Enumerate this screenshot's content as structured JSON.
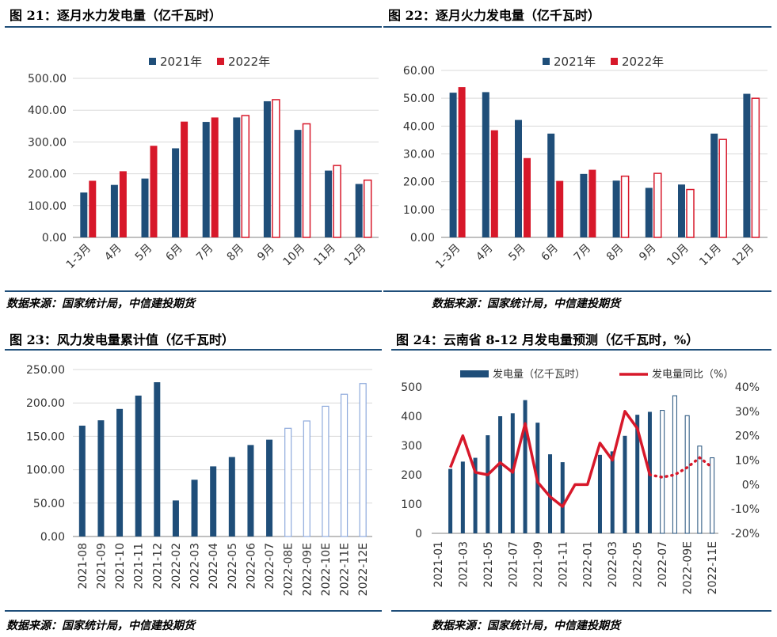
{
  "figures": [
    {
      "title": "图 21：逐月水力发电量（亿千瓦时）",
      "source": "数据来源：国家统计局，中信建投期货"
    },
    {
      "title": "图 22：逐月火力发电量（亿千瓦时）",
      "source": "数据来源：国家统计局，中信建投期货"
    },
    {
      "title": "图 23：风力发电量累计值（亿千瓦时）",
      "source": "数据来源：国家统计局，中信建投期货"
    },
    {
      "title": "图 24：云南省 8-12 月发电量预测（亿千瓦时，%）",
      "source": "数据来源：国家统计局，中信建投期货"
    }
  ],
  "colors": {
    "navy": "#1f4e79",
    "red": "#d7182a",
    "lightblue": "#8faadc",
    "grid": "#d9d9d9",
    "axis": "#808080"
  },
  "chart_data": [
    {
      "type": "bar",
      "categories": [
        "1-3月",
        "4月",
        "5月",
        "6月",
        "7月",
        "8月",
        "9月",
        "10月",
        "11月",
        "12月"
      ],
      "series": [
        {
          "name": "2021年",
          "values": [
            141,
            165,
            185,
            280,
            363,
            377,
            428,
            338,
            210,
            168
          ]
        },
        {
          "name": "2022年",
          "values": [
            178,
            208,
            288,
            364,
            377,
            383,
            433,
            357,
            226,
            180
          ]
        }
      ],
      "note_style": "2022 bars from 8月 onward drawn as outlined (forecast)",
      "yticks": [
        "0.00",
        "100.00",
        "200.00",
        "300.00",
        "400.00",
        "500.00"
      ],
      "ylim": [
        0,
        500
      ],
      "legend": "top"
    },
    {
      "type": "bar",
      "categories": [
        "1-3月",
        "4月",
        "5月",
        "6月",
        "7月",
        "8月",
        "9月",
        "10月",
        "11月",
        "12月"
      ],
      "series": [
        {
          "name": "2021年",
          "values": [
            52,
            52.2,
            42.2,
            37.3,
            22.8,
            20.4,
            17.8,
            19,
            37.3,
            51.6
          ]
        },
        {
          "name": "2022年",
          "values": [
            54,
            38.5,
            28.5,
            20.3,
            24.3,
            22,
            23,
            17.2,
            35.2,
            50
          ]
        }
      ],
      "note_style": "2022 bars from 8月 onward drawn as outlined (forecast)",
      "yticks": [
        "0.00",
        "10.00",
        "20.00",
        "30.00",
        "40.00",
        "50.00",
        "60.00"
      ],
      "ylim": [
        0,
        60
      ],
      "legend": "top"
    },
    {
      "type": "bar",
      "categories": [
        "2021-08",
        "2021-09",
        "2021-10",
        "2021-11",
        "2021-12",
        "2022-02",
        "2022-03",
        "2022-04",
        "2022-05",
        "2022-06",
        "2022-07",
        "2022-08E",
        "2022-09E",
        "2022-10E",
        "2022-11E",
        "2022-12E"
      ],
      "values": [
        166,
        174,
        191,
        211,
        231,
        54,
        85,
        105,
        119,
        137,
        145,
        162,
        173,
        195,
        213,
        229
      ],
      "forecast_from_index": 11,
      "yticks": [
        "0.00",
        "50.00",
        "100.00",
        "150.00",
        "200.00",
        "250.00"
      ],
      "ylim": [
        0,
        250
      ]
    },
    {
      "type": "bar+line",
      "x_tick_labels": [
        "2021-01",
        "2021-03",
        "2021-05",
        "2021-07",
        "2021-09",
        "2021-11",
        "2022-01",
        "2022-03",
        "2022-05",
        "2022-07",
        "2022-09E",
        "2022-11E"
      ],
      "bars": {
        "name": "发电量（亿千瓦时）",
        "values": [
          null,
          220,
          245,
          258,
          335,
          400,
          410,
          455,
          378,
          270,
          243,
          null,
          null,
          268,
          280,
          333,
          405,
          415,
          420,
          470,
          402,
          298,
          258
        ],
        "forecast_from_index": 18
      },
      "line": {
        "name": "发电量同比（%）",
        "values": [
          null,
          7,
          20,
          5,
          4,
          9,
          5,
          25,
          1,
          -5,
          -9,
          0,
          0,
          17,
          10,
          30,
          23,
          4,
          3,
          4,
          7,
          11,
          7
        ],
        "forecast_from_index": 17
      },
      "y_left_ticks": [
        "0",
        "100",
        "200",
        "300",
        "400",
        "500"
      ],
      "y_left_lim": [
        0,
        500
      ],
      "y_right_ticks": [
        "-20%",
        "-10%",
        "0%",
        "10%",
        "20%",
        "30%",
        "40%"
      ],
      "y_right_lim": [
        -20,
        40
      ],
      "legend": "top"
    }
  ]
}
